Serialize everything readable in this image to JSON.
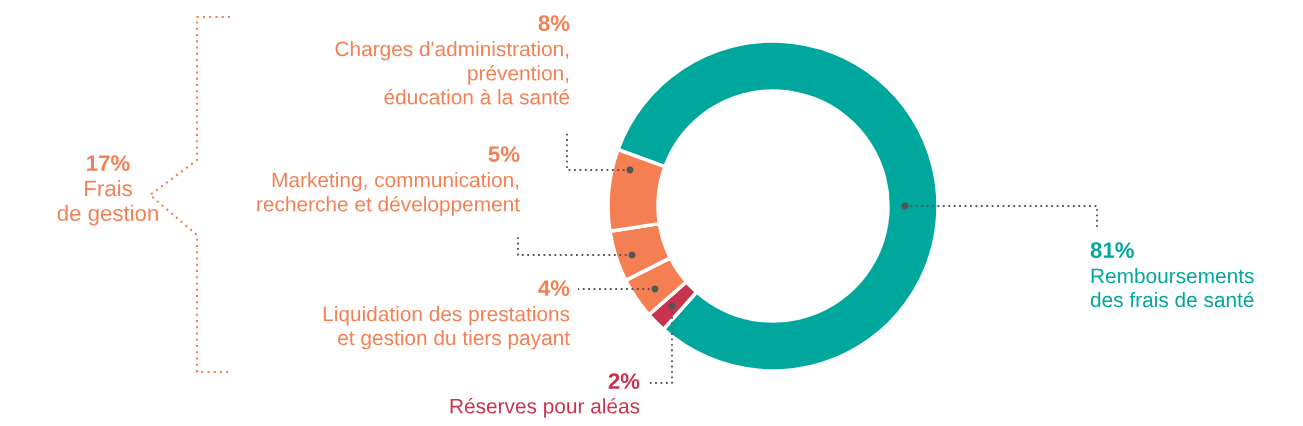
{
  "chart_data": {
    "type": "donut",
    "categories": [
      "Remboursements\ndes frais de santé",
      "Réserves pour aléas",
      "Liquidation des prestations\net gestion du tiers payant",
      "Marketing, communication,\nrecherche et développement",
      "Charges d'administration,\nprévention,\néducation à la santé"
    ],
    "values": [
      81,
      2,
      4,
      5,
      8
    ],
    "colors": [
      "#00a79d",
      "#c8334f",
      "#f47f53",
      "#f47f53",
      "#f47f53"
    ],
    "value_labels": [
      "81%",
      "2%",
      "4%",
      "5%",
      "8%"
    ],
    "annotations": [
      "17%\nFrais\nde gestion"
    ]
  }
}
